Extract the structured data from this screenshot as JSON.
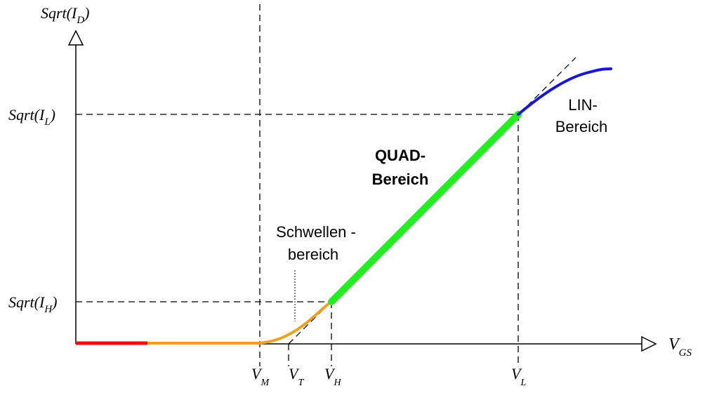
{
  "axes": {
    "y_label": {
      "main": "Sqrt(I",
      "sub": "D",
      "close": ")"
    },
    "x_label": {
      "main": "V",
      "sub": "GS"
    }
  },
  "y_ticks": [
    {
      "main": "Sqrt(I",
      "sub": "L",
      "close": ")"
    },
    {
      "main": "Sqrt(I",
      "sub": "H",
      "close": ")"
    }
  ],
  "x_ticks": [
    {
      "main": "V",
      "sub": "M"
    },
    {
      "main": "V",
      "sub": "T"
    },
    {
      "main": "V",
      "sub": "H"
    },
    {
      "main": "V",
      "sub": "L"
    }
  ],
  "regions": {
    "quad": {
      "line1": "QUAD-",
      "line2": "Bereich"
    },
    "lin": {
      "line1": "LIN-",
      "line2": "Bereich"
    },
    "threshold": {
      "line1": "Schwellen -",
      "line2": "bereich"
    }
  },
  "colors": {
    "off": "#e81010",
    "subthreshold": "#f0a020",
    "quad": "#22ee22",
    "lin": "#1515dd"
  }
}
